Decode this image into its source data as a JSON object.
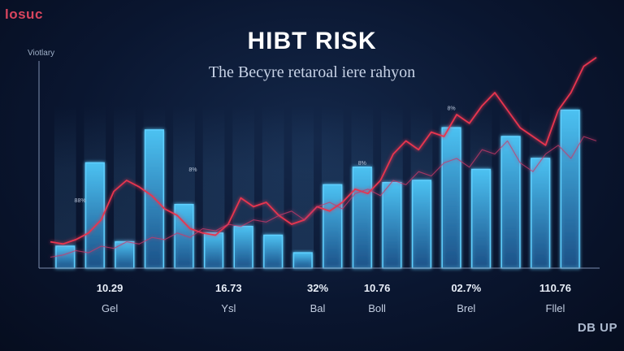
{
  "brand": {
    "logo_text": "losuc",
    "watermark": "DB UP"
  },
  "chart_data": {
    "type": "bar",
    "title": "HIBT RISK",
    "subtitle": "The Becyre retaroal iere rahyon",
    "ylabel": "Viotlary",
    "xlabel": "",
    "ylim": [
      0,
      100
    ],
    "grid": false,
    "bars": {
      "values": [
        10,
        48,
        12,
        63,
        29,
        16,
        19,
        15,
        7,
        38,
        46,
        39,
        40,
        64,
        45,
        60,
        50,
        72
      ]
    },
    "value_labels": [
      {
        "x_index": 1.5,
        "text": "10.29"
      },
      {
        "x_index": 5.5,
        "text": "16.73"
      },
      {
        "x_index": 8.5,
        "text": "32%"
      },
      {
        "x_index": 10.5,
        "text": "10.76"
      },
      {
        "x_index": 13.5,
        "text": "02.7%"
      },
      {
        "x_index": 16.5,
        "text": "110.76"
      }
    ],
    "category_labels": [
      {
        "x_index": 1.5,
        "text": "Gel"
      },
      {
        "x_index": 5.5,
        "text": "Ysl"
      },
      {
        "x_index": 8.5,
        "text": "Bal"
      },
      {
        "x_index": 10.5,
        "text": "Boll"
      },
      {
        "x_index": 13.5,
        "text": "Brel"
      },
      {
        "x_index": 16.5,
        "text": "Fllel"
      }
    ],
    "small_labels": [
      {
        "x_index": 0.5,
        "y": 30,
        "text": "88%"
      },
      {
        "x_index": 4.3,
        "y": 44,
        "text": "8%"
      },
      {
        "x_index": 10,
        "y": 47,
        "text": "8%"
      },
      {
        "x_index": 13,
        "y": 72,
        "text": "8%"
      }
    ],
    "series": [
      {
        "values": [
          12,
          11,
          13,
          16,
          22,
          35,
          40,
          37,
          33,
          27,
          24,
          18,
          16,
          15,
          20,
          32,
          28,
          30,
          24,
          20,
          22,
          28,
          26,
          30,
          36,
          34,
          40,
          52,
          58,
          54,
          62,
          60,
          70,
          66,
          74,
          80,
          72,
          64,
          60,
          56,
          72,
          80,
          92,
          96
        ]
      },
      {
        "values": [
          5,
          6,
          8,
          7,
          10,
          9,
          12,
          11,
          14,
          13,
          16,
          14,
          18,
          17,
          20,
          19,
          22,
          21,
          24,
          26,
          22,
          28,
          30,
          27,
          34,
          36,
          33,
          40,
          38,
          44,
          42,
          48,
          50,
          46,
          54,
          52,
          58,
          48,
          44,
          52,
          56,
          50,
          60,
          58
        ]
      }
    ],
    "colors": {
      "bar": "#3fa6e0",
      "line_primary": "#e8354f",
      "line_secondary": "#c93a6a",
      "axis": "#7d8fb0"
    }
  }
}
